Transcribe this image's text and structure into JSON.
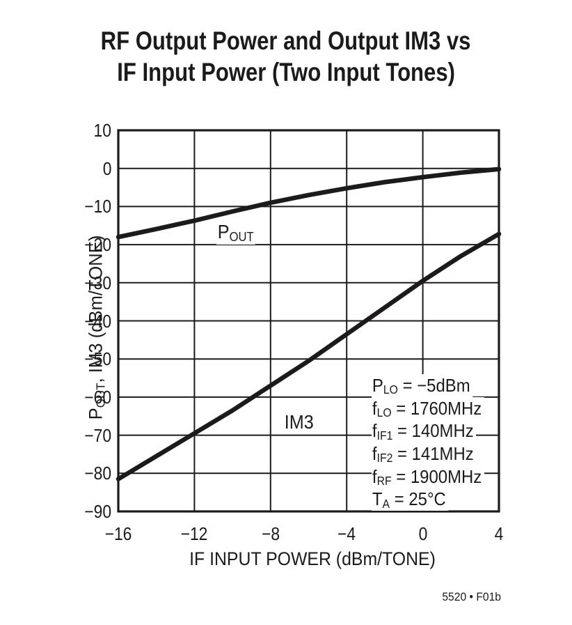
{
  "page": {
    "title_line1": "RF Output Power and Output IM3 vs",
    "title_line2": "IF Input Power (Two Input Tones)",
    "footer": "5520 • F01b",
    "ink_color": "#1c1a1b",
    "background_color": "#ffffff"
  },
  "chart_data": {
    "type": "line",
    "title": "RF Output Power and Output IM3 vs IF Input Power (Two Input Tones)",
    "xlabel": "IF INPUT POWER (dBm/TONE)",
    "ylabel_parts": [
      {
        "t": "P"
      },
      {
        "t": "OUT",
        "sub": true
      },
      {
        "t": ", IM3 (dBm/TONE)"
      }
    ],
    "xlim": [
      -16,
      4
    ],
    "ylim": [
      -90,
      10
    ],
    "xtick_values": [
      -16,
      -12,
      -8,
      -4,
      0,
      4
    ],
    "xtick_labels": [
      "−16",
      "−12",
      "−8",
      "−4",
      "0",
      "4"
    ],
    "ytick_values": [
      10,
      0,
      -10,
      -20,
      -30,
      -40,
      -50,
      -60,
      -70,
      -80,
      -90
    ],
    "ytick_labels": [
      "10",
      "0",
      "−10",
      "−20",
      "−30",
      "−40",
      "−50",
      "−60",
      "−70",
      "−80",
      "−90"
    ],
    "grid": true,
    "line_color": "#1c1a1b",
    "series": [
      {
        "name": "POUT",
        "label_parts": [
          {
            "t": "P"
          },
          {
            "t": "OUT",
            "sub": true
          }
        ],
        "x": [
          -16,
          -14,
          -12,
          -10,
          -8,
          -6,
          -4,
          -2,
          0,
          2,
          4
        ],
        "y": [
          -18.0,
          -15.9,
          -13.7,
          -11.3,
          -9.0,
          -7.0,
          -5.2,
          -3.6,
          -2.3,
          -1.1,
          -0.2
        ]
      },
      {
        "name": "IM3",
        "label_parts": [
          {
            "t": "IM3"
          }
        ],
        "x": [
          -16,
          -14,
          -12,
          -10,
          -8,
          -6,
          -4,
          -2,
          0,
          2,
          4
        ],
        "y": [
          -81.5,
          -75.5,
          -69.5,
          -63.5,
          -57.0,
          -50.5,
          -43.5,
          -36.5,
          -29.5,
          -23.0,
          -17.2
        ]
      }
    ],
    "annotations": [
      {
        "parts": [
          {
            "t": "P"
          },
          {
            "t": "LO",
            "sub": true
          },
          {
            "t": " = −5dBm"
          }
        ]
      },
      {
        "parts": [
          {
            "t": "f"
          },
          {
            "t": "LO",
            "sub": true
          },
          {
            "t": " = 1760MHz"
          }
        ]
      },
      {
        "parts": [
          {
            "t": "f"
          },
          {
            "t": "IF1",
            "sub": true
          },
          {
            "t": " = 140MHz"
          }
        ]
      },
      {
        "parts": [
          {
            "t": "f"
          },
          {
            "t": "IF2",
            "sub": true
          },
          {
            "t": " = 141MHz"
          }
        ]
      },
      {
        "parts": [
          {
            "t": "f"
          },
          {
            "t": "RF",
            "sub": true
          },
          {
            "t": " = 1900MHz"
          }
        ]
      },
      {
        "parts": [
          {
            "t": "T"
          },
          {
            "t": "A",
            "sub": true
          },
          {
            "t": " = 25°C"
          }
        ]
      }
    ]
  }
}
